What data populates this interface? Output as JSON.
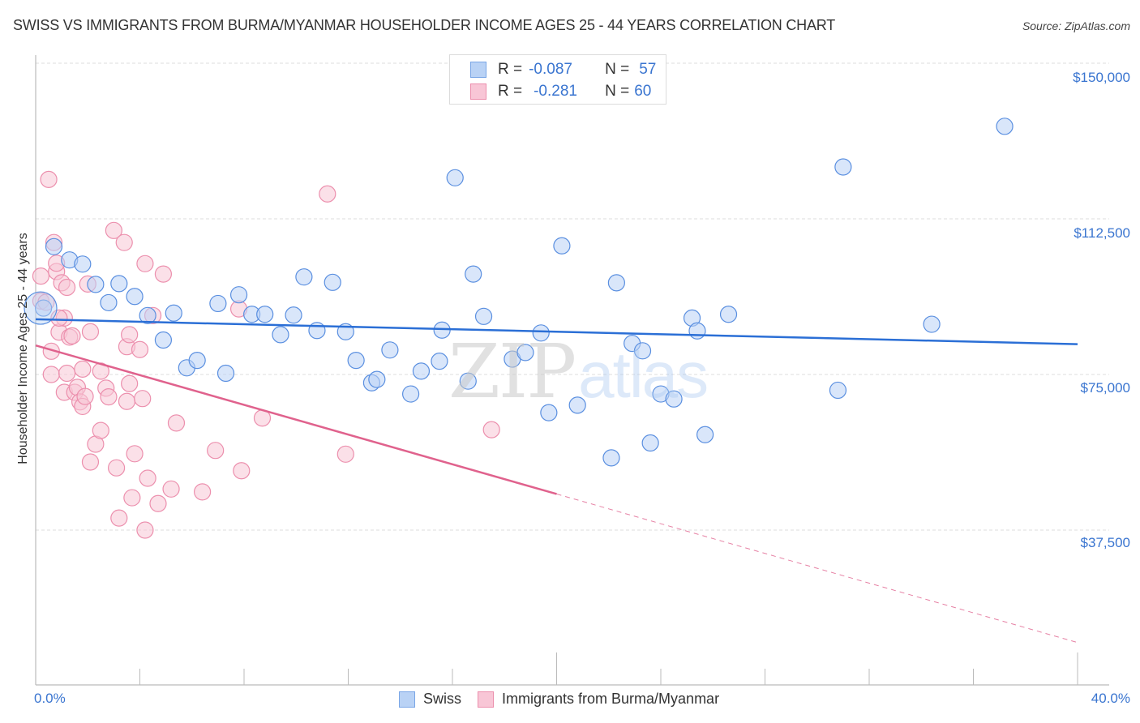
{
  "header": {
    "title": "SWISS VS IMMIGRANTS FROM BURMA/MYANMAR HOUSEHOLDER INCOME AGES 25 - 44 YEARS CORRELATION CHART",
    "source": "Source: ZipAtlas.com"
  },
  "legend": {
    "rows": [
      {
        "r_label": "R =",
        "r_value": "-0.087",
        "n_label": "N =",
        "n_value": "57"
      },
      {
        "r_label": "R =",
        "r_value": "-0.281",
        "n_label": "N =",
        "n_value": "60"
      }
    ],
    "bottom": [
      "Swiss",
      "Immigrants from Burma/Myanmar"
    ]
  },
  "axes": {
    "ylabel": "Householder Income Ages 25 - 44 years",
    "yticks": [
      "$150,000",
      "$112,500",
      "$75,000",
      "$37,500"
    ],
    "xticks": [
      "0.0%",
      "40.0%"
    ]
  },
  "watermark": {
    "zip": "ZIP",
    "atlas": "atlas"
  },
  "colors": {
    "swiss_fill": "#b9d2f5",
    "swiss_stroke": "#5a8fe0",
    "swiss_line": "#2b6fd6",
    "burma_fill": "#f8c6d6",
    "burma_stroke": "#ec8fad",
    "burma_line": "#e0628d",
    "tick_text": "#3a75d0"
  },
  "chart_data": {
    "type": "scatter",
    "title": "Swiss vs Immigrants from Burma/Myanmar Householder Income Ages 25 - 44 years Correlation Chart",
    "xlabel": "",
    "ylabel": "Householder Income Ages 25 - 44 years",
    "xlim": [
      0,
      40
    ],
    "ylim": [
      10000,
      153000
    ],
    "x_unit": "%",
    "yticks": [
      37500,
      75000,
      112500,
      150000
    ],
    "grid": true,
    "legend_position": "top-center",
    "series": [
      {
        "name": "Swiss",
        "R": -0.087,
        "N": 57,
        "trend": {
          "x0": 0,
          "y0": 88300,
          "x1": 40,
          "y1": 82300
        },
        "points": [
          [
            0.3,
            91000
          ],
          [
            0.7,
            105800
          ],
          [
            1.3,
            102600
          ],
          [
            1.8,
            101600
          ],
          [
            2.3,
            96700
          ],
          [
            2.8,
            92300
          ],
          [
            3.2,
            96900
          ],
          [
            3.8,
            93800
          ],
          [
            4.3,
            89200
          ],
          [
            4.9,
            83300
          ],
          [
            5.3,
            89800
          ],
          [
            5.8,
            76600
          ],
          [
            6.2,
            78400
          ],
          [
            7.0,
            92100
          ],
          [
            7.3,
            75300
          ],
          [
            7.8,
            94200
          ],
          [
            8.3,
            89500
          ],
          [
            8.8,
            89500
          ],
          [
            9.4,
            84600
          ],
          [
            9.9,
            89300
          ],
          [
            10.3,
            98500
          ],
          [
            10.8,
            85600
          ],
          [
            11.4,
            97200
          ],
          [
            11.9,
            85300
          ],
          [
            12.3,
            78400
          ],
          [
            12.9,
            73000
          ],
          [
            13.1,
            73800
          ],
          [
            13.6,
            80900
          ],
          [
            14.4,
            70300
          ],
          [
            14.8,
            75800
          ],
          [
            15.5,
            78200
          ],
          [
            15.6,
            85700
          ],
          [
            16.1,
            122400
          ],
          [
            16.6,
            73400
          ],
          [
            16.8,
            99200
          ],
          [
            17.2,
            89000
          ],
          [
            18.3,
            78700
          ],
          [
            18.8,
            80300
          ],
          [
            19.4,
            85000
          ],
          [
            19.7,
            65800
          ],
          [
            20.2,
            106000
          ],
          [
            20.8,
            67600
          ],
          [
            22.1,
            54900
          ],
          [
            22.3,
            97100
          ],
          [
            22.9,
            82500
          ],
          [
            23.3,
            80700
          ],
          [
            23.6,
            58500
          ],
          [
            24.0,
            70300
          ],
          [
            24.5,
            69100
          ],
          [
            25.2,
            88600
          ],
          [
            25.4,
            85500
          ],
          [
            25.7,
            60500
          ],
          [
            26.6,
            89500
          ],
          [
            30.8,
            71200
          ],
          [
            31.0,
            125000
          ],
          [
            34.4,
            87100
          ],
          [
            37.2,
            134800
          ]
        ]
      },
      {
        "name": "Immigrants from Burma/Myanmar",
        "R": -0.281,
        "N": 60,
        "trend": {
          "x0": 0,
          "y0": 82000,
          "x1": 20.0,
          "y1": 46200,
          "dashed_to": {
            "x": 40,
            "y": 10400
          }
        },
        "points": [
          [
            0.2,
            98700
          ],
          [
            0.2,
            92700
          ],
          [
            0.4,
            92400
          ],
          [
            0.5,
            122000
          ],
          [
            0.6,
            80600
          ],
          [
            0.6,
            75000
          ],
          [
            0.7,
            106800
          ],
          [
            0.8,
            99800
          ],
          [
            0.8,
            101800
          ],
          [
            0.9,
            85200
          ],
          [
            1.0,
            97100
          ],
          [
            1.1,
            88600
          ],
          [
            1.1,
            70700
          ],
          [
            1.2,
            75300
          ],
          [
            1.3,
            84000
          ],
          [
            1.4,
            84300
          ],
          [
            1.5,
            70700
          ],
          [
            1.6,
            71900
          ],
          [
            1.7,
            68400
          ],
          [
            1.8,
            67300
          ],
          [
            1.8,
            76300
          ],
          [
            1.9,
            69700
          ],
          [
            2.0,
            96800
          ],
          [
            2.1,
            85300
          ],
          [
            2.1,
            53900
          ],
          [
            2.3,
            58200
          ],
          [
            2.5,
            75800
          ],
          [
            2.5,
            61500
          ],
          [
            2.7,
            71700
          ],
          [
            2.8,
            69600
          ],
          [
            3.0,
            109700
          ],
          [
            3.1,
            52500
          ],
          [
            3.2,
            40400
          ],
          [
            3.4,
            106800
          ],
          [
            3.5,
            68500
          ],
          [
            3.5,
            81700
          ],
          [
            3.6,
            72800
          ],
          [
            3.6,
            84600
          ],
          [
            3.7,
            45300
          ],
          [
            3.8,
            55900
          ],
          [
            4.0,
            81000
          ],
          [
            4.1,
            69200
          ],
          [
            4.2,
            37500
          ],
          [
            4.2,
            101700
          ],
          [
            4.3,
            50000
          ],
          [
            4.5,
            89200
          ],
          [
            4.7,
            43900
          ],
          [
            4.9,
            99200
          ],
          [
            5.2,
            47400
          ],
          [
            5.4,
            63300
          ],
          [
            6.4,
            46700
          ],
          [
            6.9,
            56700
          ],
          [
            7.8,
            90800
          ],
          [
            7.9,
            51800
          ],
          [
            8.7,
            64500
          ],
          [
            11.2,
            118500
          ],
          [
            11.9,
            55800
          ],
          [
            17.5,
            61700
          ],
          [
            0.9,
            88600
          ],
          [
            1.2,
            96000
          ]
        ]
      }
    ]
  }
}
